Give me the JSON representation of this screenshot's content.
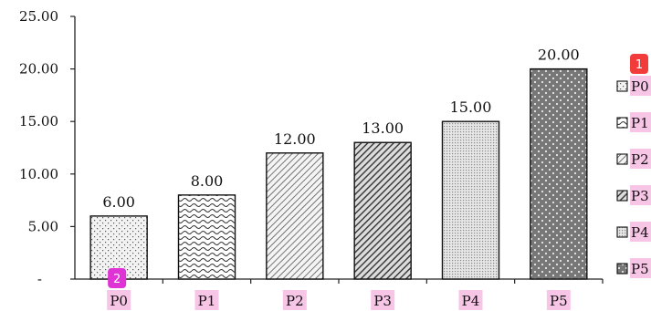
{
  "chart_data": {
    "type": "bar",
    "title": "",
    "xlabel": "",
    "ylabel": "",
    "categories": [
      "P0",
      "P1",
      "P2",
      "P3",
      "P4",
      "P5"
    ],
    "values": [
      6.0,
      8.0,
      12.0,
      13.0,
      15.0,
      20.0
    ],
    "data_labels": [
      "6.00",
      "8.00",
      "12.00",
      "13.00",
      "15.00",
      "20.00"
    ],
    "ylim": [
      0,
      25
    ],
    "y_ticks": [
      {
        "value": 0,
        "label": "-"
      },
      {
        "value": 5,
        "label": "5.00"
      },
      {
        "value": 10,
        "label": "10.00"
      },
      {
        "value": 15,
        "label": "15.00"
      },
      {
        "value": 20,
        "label": "20.00"
      },
      {
        "value": 25,
        "label": "25.00"
      }
    ],
    "grid": false,
    "legend": {
      "placement": "right",
      "entries": [
        "P0",
        "P1",
        "P2",
        "P3",
        "P4",
        "P5"
      ]
    },
    "patterns": [
      "sparse-dots",
      "waves",
      "light-diagonal",
      "dark-diagonal",
      "dense-dots",
      "dark-diamonds"
    ],
    "highlight_color": "#f7c6e6",
    "annotations": [
      {
        "label": "1",
        "target": "legend-first-entry",
        "color": "#f23b3b"
      },
      {
        "label": "2",
        "target": "category-P0",
        "color": "#e033d6"
      }
    ]
  }
}
